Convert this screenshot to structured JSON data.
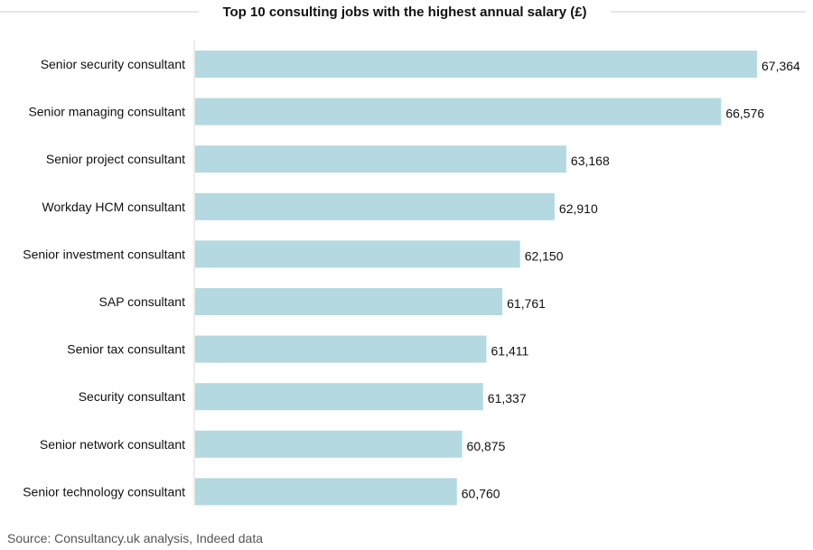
{
  "chart_data": {
    "type": "bar",
    "orientation": "horizontal",
    "title": "Top 10 consulting jobs with the highest annual salary (£)",
    "source": "Source: Consultancy.uk analysis, Indeed data",
    "xlabel": "",
    "ylabel": "",
    "xlim": [
      55000,
      67364
    ],
    "grid": false,
    "categories": [
      "Senior security consultant",
      "Senior managing consultant",
      "Senior project consultant",
      "Workday HCM consultant",
      "Senior investment consultant",
      "SAP consultant",
      "Senior tax consultant",
      "Security consultant",
      "Senior network consultant",
      "Senior technology consultant"
    ],
    "values": [
      67364,
      66576,
      63168,
      62910,
      62150,
      61761,
      61411,
      61337,
      60875,
      60760
    ],
    "value_labels": [
      "67,364",
      "66,576",
      "63,168",
      "62,910",
      "62,150",
      "61,761",
      "61,411",
      "61,337",
      "60,875",
      "60,760"
    ]
  },
  "colors": {
    "bar": "#b4d9e0",
    "title_rule": "#cccccc",
    "axis_line": "#d8d8d8"
  }
}
